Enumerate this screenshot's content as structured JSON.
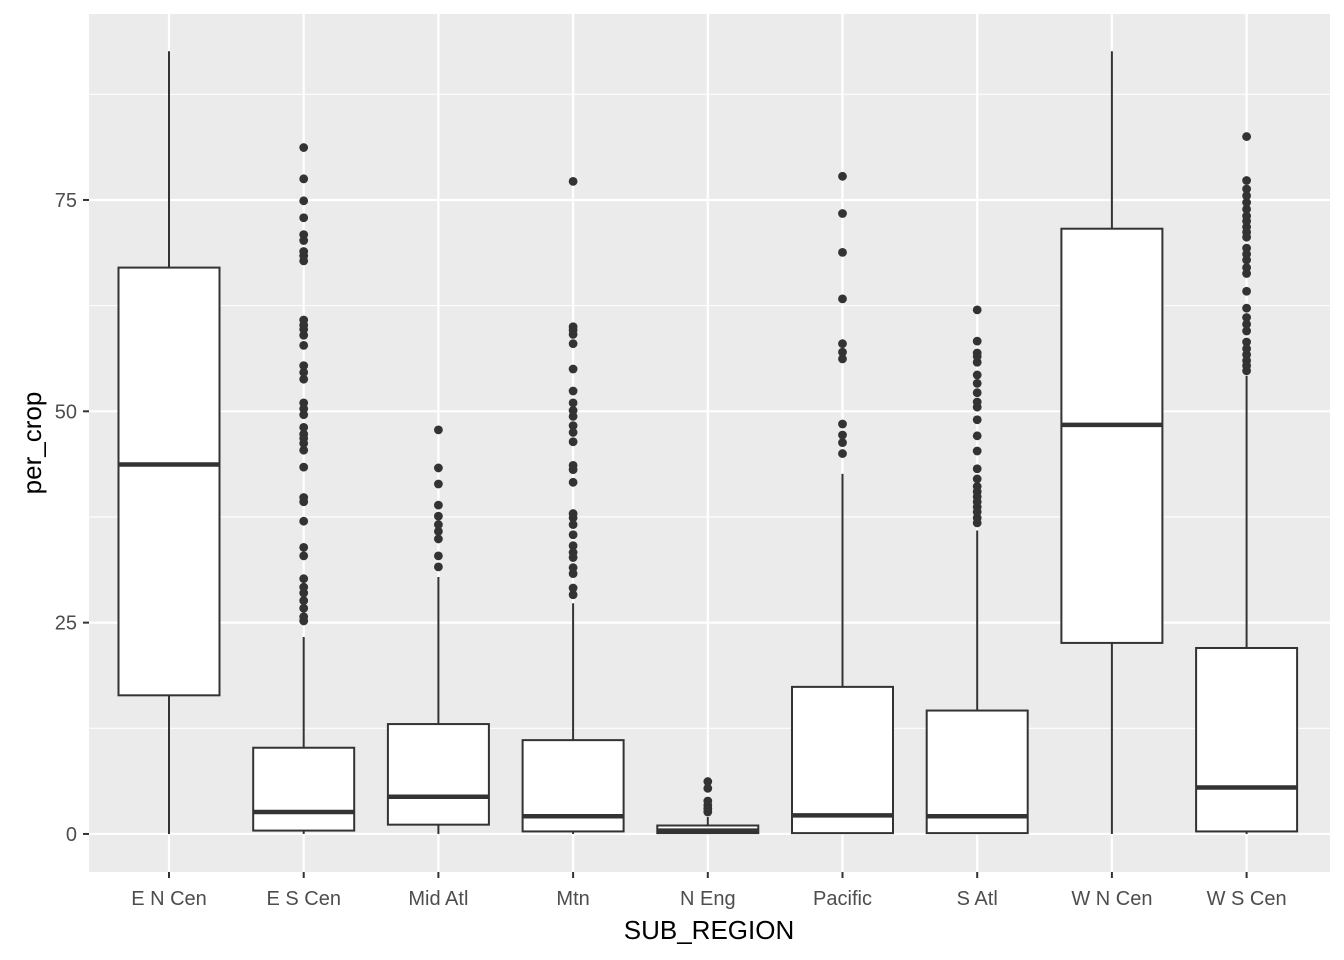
{
  "chart_data": {
    "type": "boxplot",
    "xlabel": "SUB_REGION",
    "ylabel": "per_crop",
    "ylim": [
      -4.5,
      97
    ],
    "yticks": [
      0,
      25,
      50,
      75
    ],
    "grid": true,
    "categories": [
      "E N Cen",
      "E S Cen",
      "Mid Atl",
      "Mtn",
      "N Eng",
      "Pacific",
      "S Atl",
      "W N Cen",
      "W S Cen"
    ],
    "boxes": [
      {
        "category": "E N Cen",
        "lower_whisker": 0,
        "q1": 16.4,
        "median": 43.7,
        "q3": 67.0,
        "upper_whisker": 92.6,
        "outliers": []
      },
      {
        "category": "E S Cen",
        "lower_whisker": 0,
        "q1": 0.4,
        "median": 2.6,
        "q3": 10.2,
        "upper_whisker": 23.3,
        "outliers": [
          25.2,
          25.7,
          26.7,
          27.6,
          28.5,
          29.2,
          30.2,
          32.9,
          33.9,
          37.0,
          39.3,
          39.8,
          43.4,
          45.4,
          46.2,
          46.8,
          47.3,
          48.1,
          49.6,
          50.3,
          51.0,
          53.8,
          54.6,
          55.4,
          57.8,
          59.0,
          59.7,
          60.2,
          60.8,
          67.8,
          68.4,
          68.9,
          70.2,
          70.9,
          72.9,
          74.9,
          77.5,
          81.2
        ]
      },
      {
        "category": "Mid Atl",
        "lower_whisker": 0,
        "q1": 1.1,
        "median": 4.4,
        "q3": 13.0,
        "upper_whisker": 30.4,
        "outliers": [
          31.6,
          32.9,
          34.9,
          35.8,
          36.6,
          37.6,
          38.9,
          41.4,
          43.3,
          47.8
        ]
      },
      {
        "category": "Mtn",
        "lower_whisker": 0,
        "q1": 0.3,
        "median": 2.1,
        "q3": 11.1,
        "upper_whisker": 27.3,
        "outliers": [
          28.3,
          29.1,
          30.8,
          31.5,
          32.7,
          33.3,
          34.1,
          35.4,
          36.6,
          37.4,
          37.9,
          41.6,
          43.1,
          43.6,
          46.4,
          47.5,
          48.3,
          49.4,
          50.1,
          51.0,
          52.4,
          55.0,
          58.0,
          59.1,
          59.6,
          60.0,
          77.2
        ]
      },
      {
        "category": "N Eng",
        "lower_whisker": 0,
        "q1": 0.1,
        "median": 0.4,
        "q3": 1.0,
        "upper_whisker": 2.0,
        "outliers": [
          2.6,
          3.0,
          3.4,
          3.9,
          5.4,
          6.2
        ]
      },
      {
        "category": "Pacific",
        "lower_whisker": 0,
        "q1": 0.1,
        "median": 2.2,
        "q3": 17.4,
        "upper_whisker": 42.6,
        "outliers": [
          45.0,
          46.3,
          47.2,
          48.5,
          56.2,
          57.0,
          58.0,
          63.3,
          68.8,
          73.4,
          77.8
        ]
      },
      {
        "category": "S Atl",
        "lower_whisker": 0,
        "q1": 0.1,
        "median": 2.1,
        "q3": 14.6,
        "upper_whisker": 35.9,
        "outliers": [
          36.8,
          37.4,
          38.1,
          38.7,
          39.3,
          39.9,
          40.5,
          41.1,
          42.0,
          43.2,
          45.3,
          47.1,
          49.0,
          50.5,
          51.1,
          52.2,
          53.3,
          54.3,
          55.8,
          56.5,
          56.9,
          58.3,
          62.0
        ]
      },
      {
        "category": "W N Cen",
        "lower_whisker": 0,
        "q1": 22.6,
        "median": 48.4,
        "q3": 71.6,
        "upper_whisker": 92.6,
        "outliers": []
      },
      {
        "category": "W S Cen",
        "lower_whisker": 0,
        "q1": 0.3,
        "median": 5.5,
        "q3": 22.0,
        "upper_whisker": 54.2,
        "outliers": [
          54.8,
          55.4,
          56.0,
          56.7,
          57.4,
          58.2,
          59.5,
          60.3,
          61.1,
          62.2,
          64.2,
          66.3,
          67.0,
          67.9,
          68.6,
          69.3,
          70.6,
          71.2,
          71.8,
          72.5,
          73.1,
          73.9,
          74.7,
          75.5,
          76.3,
          77.3,
          82.5
        ]
      }
    ]
  }
}
